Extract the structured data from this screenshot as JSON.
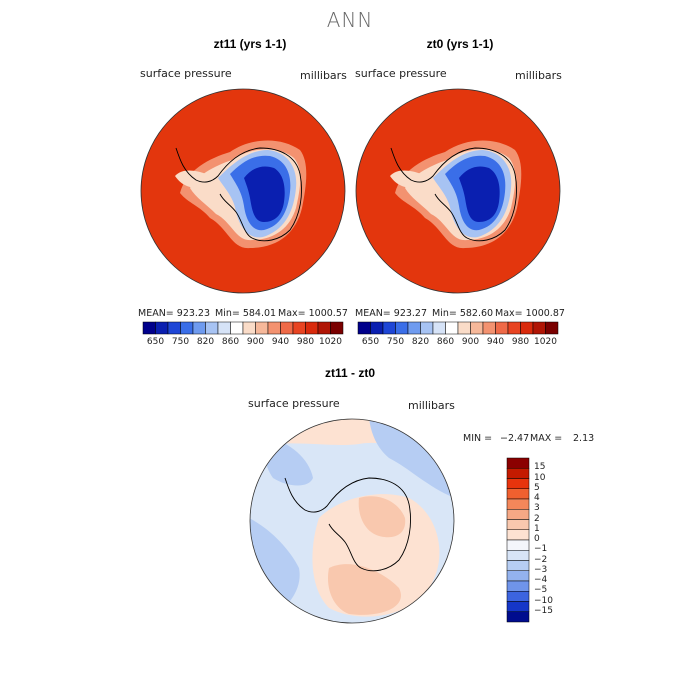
{
  "title": "ANN",
  "panels": [
    {
      "title": "zt11 (yrs 1-1)",
      "left_label": "surface pressure",
      "right_label": "millibars",
      "stats": {
        "mean": "MEAN= 923.23",
        "min": "Min= 584.01",
        "max": "Max= 1000.57"
      }
    },
    {
      "title": "zt0 (yrs 1-1)",
      "left_label": "surface pressure",
      "right_label": "millibars",
      "stats": {
        "mean": "MEAN= 923.27",
        "min": "Min= 582.60",
        "max": "Max= 1000.87"
      }
    }
  ],
  "colorbar_top": {
    "colors": [
      "#00008b",
      "#0a1fb0",
      "#1e46d6",
      "#3a6ee8",
      "#6f9bef",
      "#a7c3f3",
      "#d6e3f7",
      "#ffffff",
      "#fadcc8",
      "#f6b89a",
      "#f39270",
      "#ef6a48",
      "#e84422",
      "#d92a0c",
      "#b01505",
      "#7a0000"
    ],
    "tick_labels": [
      "650",
      "750",
      "820",
      "860",
      "900",
      "940",
      "980",
      "1020"
    ]
  },
  "diff_panel": {
    "title": "zt11 - zt0",
    "left_label": "surface pressure",
    "right_label": "millibars",
    "min_text": "MIN =",
    "min_value": "−2.47",
    "max_text": "MAX =",
    "max_value": "2.13"
  },
  "colorbar_diff": {
    "colors": [
      "#8b0000",
      "#c41a00",
      "#e8340d",
      "#f0602f",
      "#f4875a",
      "#f6a885",
      "#f9c8ae",
      "#fde2d2",
      "#f4f6fb",
      "#d7e4f7",
      "#b6cdf3",
      "#93b2ee",
      "#6f94ea",
      "#3c64e0",
      "#1536c8",
      "#000c8e"
    ],
    "labels": [
      "15",
      "10",
      "5",
      "4",
      "3",
      "2",
      "1",
      "0",
      "−1",
      "−2",
      "−3",
      "−4",
      "−5",
      "−10",
      "−15"
    ]
  },
  "colors": {
    "ocean_high": "#e3360d",
    "ice_low": "#00008b",
    "diff_background": "#d9e6f7"
  }
}
